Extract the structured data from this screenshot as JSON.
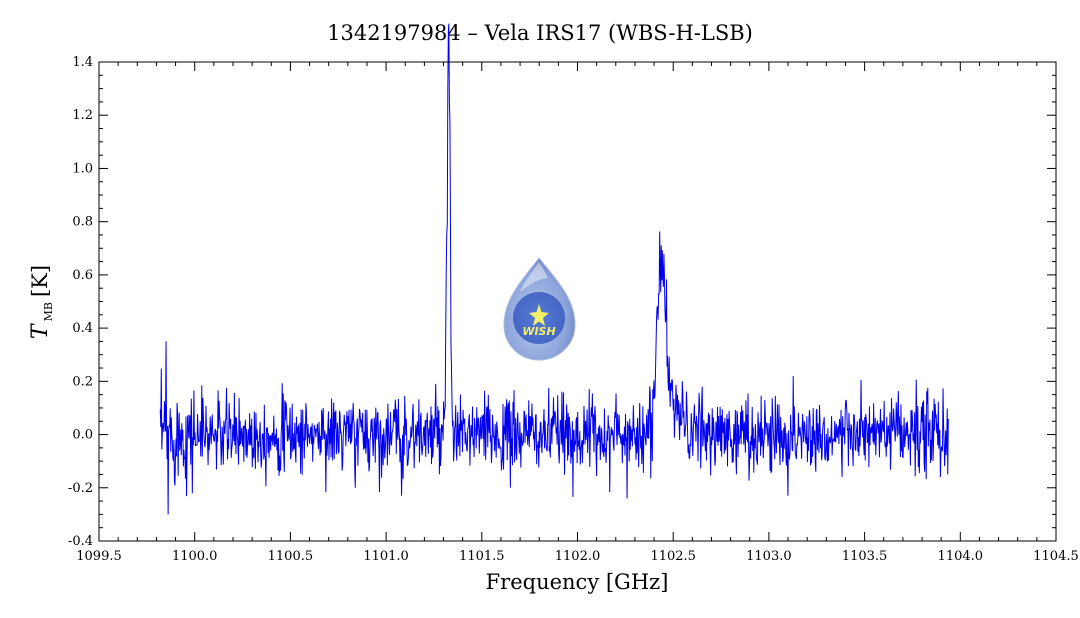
{
  "chart_data": {
    "type": "line",
    "title": "1342197984 – Vela IRS17 (WBS-H-LSB)",
    "xlabel": "Frequency [GHz]",
    "ylabel": {
      "symbol": "T",
      "subscript": "MB",
      "unit": "[K]"
    },
    "xlim": [
      1099.5,
      1104.5
    ],
    "ylim": [
      -0.4,
      1.4
    ],
    "x_ticks": [
      "1099.5",
      "1100.0",
      "1100.5",
      "1101.0",
      "1101.5",
      "1102.0",
      "1102.5",
      "1103.0",
      "1103.5",
      "1104.0",
      "1104.5"
    ],
    "y_ticks": [
      "-0.4",
      "-0.2",
      "0.0",
      "0.2",
      "0.4",
      "0.6",
      "0.8",
      "1.0",
      "1.2",
      "1.4"
    ],
    "grid": false,
    "line_color": "#0000ee",
    "spectrum_range": [
      1099.82,
      1103.94
    ],
    "baseline_noise_rms": 0.07,
    "peaks": [
      {
        "x": 1101.33,
        "y": 1.25
      },
      {
        "x": 1101.32,
        "y": 0.79
      },
      {
        "x": 1102.44,
        "y": 0.58
      }
    ],
    "extremes": [
      {
        "x": 1099.85,
        "y": 0.35
      },
      {
        "x": 1099.86,
        "y": -0.3
      },
      {
        "x": 1102.39,
        "y": -0.1
      },
      {
        "x": 1103.1,
        "y": -0.23
      },
      {
        "x": 1101.08,
        "y": -0.23
      },
      {
        "x": 1101.65,
        "y": -0.2
      }
    ]
  },
  "logo": {
    "text": "WISH"
  }
}
